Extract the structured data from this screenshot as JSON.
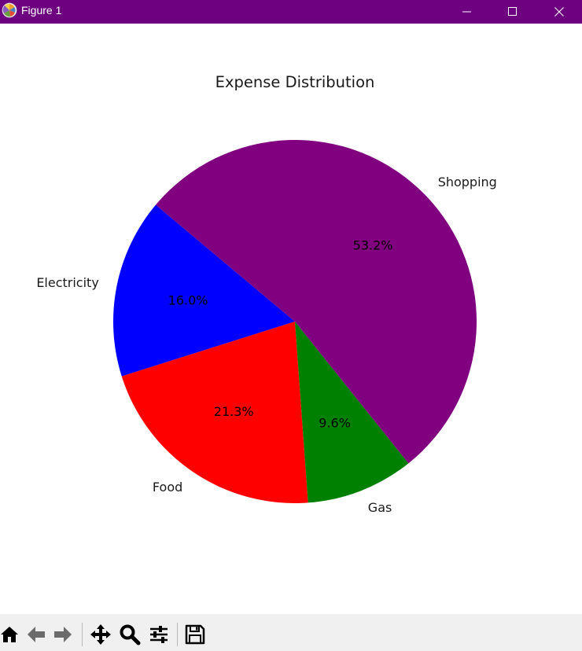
{
  "window": {
    "title": "Figure 1",
    "title_bar_color": "#6d0180"
  },
  "chart_data": {
    "type": "pie",
    "title": "Expense Distribution",
    "categories": [
      "Electricity",
      "Food",
      "Gas",
      "Shopping"
    ],
    "values": [
      16.0,
      21.3,
      9.6,
      53.2
    ],
    "value_labels": [
      "16.0%",
      "21.3%",
      "9.6%",
      "53.2%"
    ],
    "colors": [
      "#0000ff",
      "#ff0000",
      "#008000",
      "#800080"
    ],
    "start_angle_deg": 140,
    "direction": "counterclockwise",
    "legend": "none"
  },
  "toolbar": {
    "buttons": [
      {
        "name": "home-icon",
        "tooltip": "Home"
      },
      {
        "name": "back-icon",
        "tooltip": "Back"
      },
      {
        "name": "forward-icon",
        "tooltip": "Forward"
      },
      {
        "name": "pan-icon",
        "tooltip": "Pan"
      },
      {
        "name": "zoom-icon",
        "tooltip": "Zoom"
      },
      {
        "name": "configure-subplots-icon",
        "tooltip": "Configure subplots"
      },
      {
        "name": "save-icon",
        "tooltip": "Save"
      }
    ]
  }
}
